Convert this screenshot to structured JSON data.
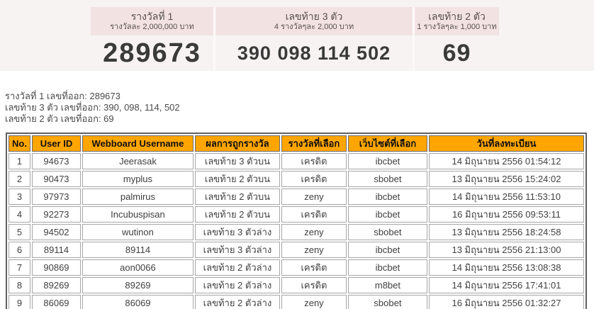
{
  "top_section": {
    "prizes": [
      {
        "title": "รางวัลที่ 1",
        "subtitle": "รางวัลละ 2,000,000 บาท",
        "number": "289673"
      },
      {
        "title": "เลขท้าย 3 ตัว",
        "subtitle": "4 รางวัลๆละ 2,000 บาท",
        "number": "390 098 114 502"
      },
      {
        "title": "เลขท้าย 2 ตัว",
        "subtitle": "1 รางวัลๆละ 1,000 บาท",
        "number": "69"
      }
    ]
  },
  "summary_lines": [
    "รางวัลที่ 1 เลขที่ออก: 289673",
    "เลขท้าย 3 ตัว เลขที่ออก: 390, 098, 114, 502",
    "เลขท้าย 2 ตัว เลขที่ออก: 69"
  ],
  "table": {
    "headers": [
      "No.",
      "User ID",
      "Webboard Username",
      "ผลการถูกรางวัล",
      "รางวัลที่เลือก",
      "เว็บไซต์ที่เลือก",
      "วันที่ลงทะเบียน"
    ],
    "rows": [
      [
        "1",
        "94673",
        "Jeerasak",
        "เลขท้าย 3 ตัวบน",
        "เครดิต",
        "ibcbet",
        "14 มิถุนายน 2556 01:54:12"
      ],
      [
        "2",
        "90473",
        "myplus",
        "เลขท้าย 2 ตัวบน",
        "เครดิต",
        "sbobet",
        "13 มิถุนายน 2556 15:24:02"
      ],
      [
        "3",
        "97973",
        "palmirus",
        "เลขท้าย 2 ตัวบน",
        "zeny",
        "ibcbet",
        "14 มิถุนายน 2556 11:53:10"
      ],
      [
        "4",
        "92273",
        "Incubuspisan",
        "เลขท้าย 2 ตัวบน",
        "เครดิต",
        "ibcbet",
        "16 มิถุนายน 2556 09:53:11"
      ],
      [
        "5",
        "94502",
        "wutinon",
        "เลขท้าย 3 ตัวล่าง",
        "zeny",
        "sbobet",
        "13 มิถุนายน 2556 18:24:58"
      ],
      [
        "6",
        "89114",
        "89114",
        "เลขท้าย 3 ตัวล่าง",
        "zeny",
        "ibcbet",
        "13 มิถุนายน 2556 21:13:00"
      ],
      [
        "7",
        "90869",
        "aon0066",
        "เลขท้าย 2 ตัวล่าง",
        "เครดิต",
        "ibcbet",
        "14 มิถุนายน 2556 13:08:38"
      ],
      [
        "8",
        "89269",
        "89269",
        "เลขท้าย 2 ตัวล่าง",
        "เครดิต",
        "m8bet",
        "14 มิถุนายน 2556 17:41:01"
      ],
      [
        "9",
        "86069",
        "86069",
        "เลขท้าย 2 ตัวล่าง",
        "zeny",
        "sbobet",
        "16 มิถุนายน 2556 01:32:27"
      ]
    ]
  },
  "colors": {
    "band_background": "#f6f3f2",
    "prize_box_background": "#f2e3e2",
    "prize_text": "#564f4b",
    "number_text": "#3a3a3a",
    "table_header_background": "#ffa500",
    "table_outer_border": "#606060",
    "table_cell_border": "#a6a6a6",
    "body_text": "#4a4a4a"
  }
}
